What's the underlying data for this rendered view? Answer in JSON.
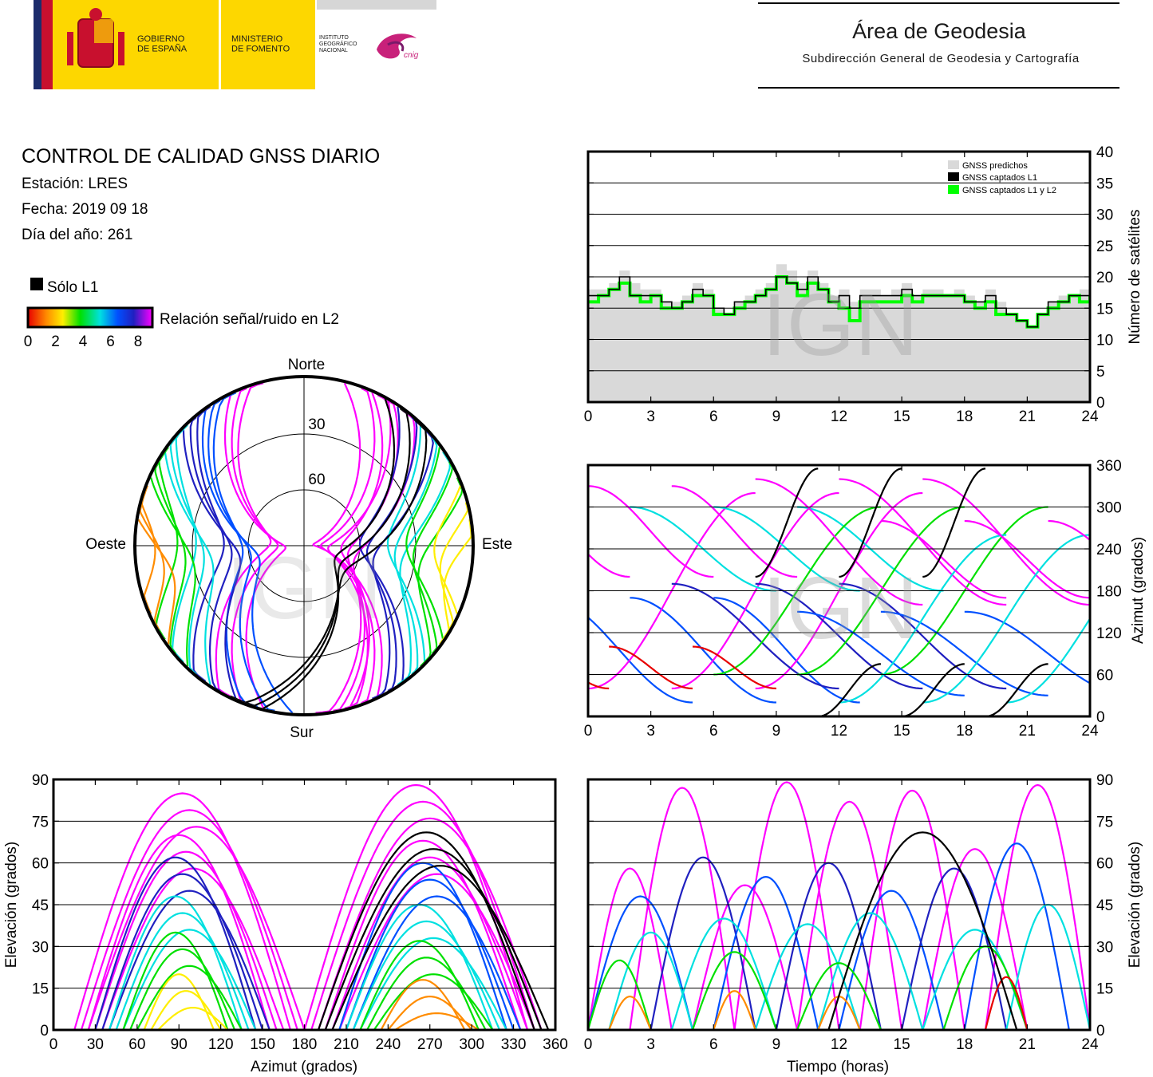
{
  "header": {
    "gobierno": "GOBIERNO\nDE ESPAÑA",
    "ministerio": "MINISTERIO\nDE FOMENTO",
    "instituto": "INSTITUTO\nGEOGRÁFICO\nNACIONAL",
    "cnig": "cnig",
    "area_title": "Área de Geodesia",
    "area_subtitle": "Subdirección General de Geodesia y Cartografía",
    "colors": {
      "yellow": "#fdd700",
      "red": "#c8102e",
      "blue": "#1c2c6c",
      "gray": "#d6d6d6",
      "cnig_magenta": "#c8217a"
    }
  },
  "info": {
    "title": "CONTROL DE CALIDAD GNSS DIARIO",
    "station": "Estación: LRES",
    "date": "Fecha: 2019 09 18",
    "doy": "Día del año: 261",
    "legend_l1": "Sólo L1",
    "colorbar_label": "Relación señal/ruido en L2",
    "colorbar_ticks": [
      "0",
      "2",
      "4",
      "6",
      "8"
    ],
    "colorbar_colors": [
      "#e80000",
      "#ff8c00",
      "#ffee00",
      "#00e000",
      "#00e0e0",
      "#0050ff",
      "#2020c0",
      "#ff00ff"
    ]
  },
  "watermark": "IGN",
  "chart_data": [
    {
      "type": "area",
      "id": "satellites",
      "ylabel": "Número de satélites",
      "xlim": [
        0,
        24
      ],
      "ylim": [
        0,
        40
      ],
      "xticks": [
        "0",
        "3",
        "6",
        "9",
        "12",
        "15",
        "18",
        "21",
        "24"
      ],
      "yticks": [
        "0",
        "5",
        "10",
        "15",
        "20",
        "25",
        "30",
        "35",
        "40"
      ],
      "legend": [
        "GNSS predichos",
        "GNSS captados L1",
        "GNSS captados L1 y L2"
      ],
      "legend_position": "top-right",
      "grid": true,
      "colors": {
        "predicted": "#d9d9d9",
        "l1": "#000000",
        "l1l2": "#00ff00"
      },
      "x": [
        0,
        0.5,
        1,
        1.5,
        2,
        2.5,
        3,
        3.5,
        4,
        4.5,
        5,
        5.5,
        6,
        6.5,
        7,
        7.5,
        8,
        8.5,
        9,
        9.5,
        10,
        10.5,
        11,
        11.5,
        12,
        12.5,
        13,
        13.5,
        14,
        14.5,
        15,
        15.5,
        16,
        16.5,
        17,
        17.5,
        18,
        18.5,
        19,
        19.5,
        20,
        20.5,
        21,
        21.5,
        22,
        22.5,
        23,
        23.5,
        24
      ],
      "predicted": [
        18,
        18,
        19,
        21,
        19,
        18,
        18,
        16,
        16,
        17,
        19,
        18,
        15,
        14,
        16,
        17,
        18,
        19,
        22,
        21,
        19,
        21,
        19,
        17,
        18,
        16,
        18,
        18,
        17,
        18,
        19,
        17,
        18,
        18,
        17,
        18,
        17,
        16,
        18,
        16,
        14,
        13,
        12,
        14,
        16,
        17,
        17,
        18,
        18
      ],
      "l1": [
        17,
        17,
        18,
        20,
        17,
        17,
        17,
        16,
        15,
        16,
        18,
        17,
        15,
        14,
        16,
        16,
        17,
        18,
        20,
        19,
        18,
        20,
        18,
        16,
        17,
        15,
        17,
        17,
        17,
        17,
        18,
        17,
        17,
        17,
        17,
        17,
        16,
        16,
        17,
        15,
        14,
        13,
        12,
        14,
        16,
        16,
        17,
        17,
        17
      ],
      "l1l2": [
        16,
        17,
        18,
        19,
        17,
        16,
        17,
        15,
        15,
        16,
        17,
        17,
        14,
        14,
        15,
        16,
        17,
        18,
        20,
        19,
        17,
        19,
        18,
        16,
        15,
        13,
        16,
        16,
        16,
        16,
        17,
        16,
        17,
        17,
        17,
        17,
        16,
        15,
        16,
        14,
        14,
        13,
        12,
        14,
        15,
        16,
        17,
        16,
        17
      ]
    },
    {
      "type": "scatter",
      "id": "skyplot",
      "labels": {
        "north": "Norte",
        "south": "Sur",
        "east": "Este",
        "west": "Oeste"
      },
      "rings": [
        "30",
        "60"
      ],
      "description_tracks": "satellite tracks colored by L2 SNR",
      "tracks": [
        {
          "az_start": 20,
          "az_end": 160,
          "max_el": 85,
          "color": "#ff00ff"
        },
        {
          "az_start": 340,
          "az_end": 200,
          "max_el": 80,
          "color": "#ff00ff"
        },
        {
          "az_start": 30,
          "az_end": 170,
          "max_el": 70,
          "color": "#ff00ff"
        },
        {
          "az_start": 330,
          "az_end": 190,
          "max_el": 65,
          "color": "#0050ff"
        },
        {
          "az_start": 40,
          "az_end": 150,
          "max_el": 60,
          "color": "#2020c0"
        },
        {
          "az_start": 320,
          "az_end": 210,
          "max_el": 55,
          "color": "#2020c0"
        },
        {
          "az_start": 50,
          "az_end": 140,
          "max_el": 45,
          "color": "#00e0e0"
        },
        {
          "az_start": 310,
          "az_end": 220,
          "max_el": 40,
          "color": "#00e0e0"
        },
        {
          "az_start": 60,
          "az_end": 130,
          "max_el": 35,
          "color": "#00e000"
        },
        {
          "az_start": 300,
          "az_end": 230,
          "max_el": 30,
          "color": "#00e000"
        },
        {
          "az_start": 75,
          "az_end": 120,
          "max_el": 20,
          "color": "#ffee00"
        },
        {
          "az_start": 285,
          "az_end": 240,
          "max_el": 18,
          "color": "#ff8c00"
        },
        {
          "az_start": 200,
          "az_end": 35,
          "max_el": 72,
          "color": "#000000"
        }
      ]
    },
    {
      "type": "scatter",
      "id": "azimuth_time",
      "ylabel": "Azimut (grados)",
      "xlim": [
        0,
        24
      ],
      "ylim": [
        0,
        360
      ],
      "xticks": [
        "0",
        "3",
        "6",
        "9",
        "12",
        "15",
        "18",
        "21",
        "24"
      ],
      "yticks": [
        "0",
        "60",
        "120",
        "180",
        "240",
        "300",
        "360"
      ],
      "grid": true,
      "tracks": [
        {
          "t0": 0,
          "t1": 6,
          "az0": 330,
          "az1": 200,
          "color": "#ff00ff"
        },
        {
          "t0": 2,
          "t1": 9,
          "az0": 170,
          "az1": 20,
          "color": "#0050ff"
        },
        {
          "t0": 4,
          "t1": 12,
          "az0": 40,
          "az1": 320,
          "color": "#ff00ff"
        },
        {
          "t0": 6,
          "t1": 13,
          "az0": 300,
          "az1": 180,
          "color": "#00e0e0"
        },
        {
          "t0": 8,
          "t1": 16,
          "az0": 190,
          "az1": 40,
          "color": "#2020c0"
        },
        {
          "t0": 10,
          "t1": 18,
          "az0": 60,
          "az1": 300,
          "color": "#00e000"
        },
        {
          "t0": 12,
          "t1": 20,
          "az0": 340,
          "az1": 160,
          "color": "#ff00ff"
        },
        {
          "t0": 14,
          "t1": 22,
          "az0": 150,
          "az1": 30,
          "color": "#0050ff"
        },
        {
          "t0": 16,
          "t1": 24,
          "az0": 20,
          "az1": 260,
          "color": "#00e0e0"
        },
        {
          "t0": 18,
          "t1": 24,
          "az0": 280,
          "az1": 170,
          "color": "#ff00ff"
        },
        {
          "t0": 1,
          "t1": 5,
          "az0": 100,
          "az1": 40,
          "color": "#e80000"
        },
        {
          "t0": 12,
          "t1": 15,
          "az0": 200,
          "az1": 355,
          "color": "#000000"
        },
        {
          "t0": 15,
          "t1": 18,
          "az0": 0,
          "az1": 75,
          "color": "#000000"
        }
      ]
    },
    {
      "type": "scatter",
      "id": "elevation_azimuth",
      "xlabel": "Azimut (grados)",
      "ylabel": "Elevación (grados)",
      "xlim": [
        0,
        360
      ],
      "ylim": [
        0,
        90
      ],
      "xticks": [
        "0",
        "30",
        "60",
        "90",
        "120",
        "150",
        "180",
        "210",
        "240",
        "270",
        "300",
        "330",
        "360"
      ],
      "yticks": [
        "0",
        "15",
        "30",
        "45",
        "60",
        "75",
        "90"
      ],
      "grid": true,
      "arcs": [
        {
          "az0": 20,
          "az1": 175,
          "peak": 85,
          "color": "#ff00ff"
        },
        {
          "az0": 185,
          "az1": 345,
          "peak": 88,
          "color": "#ff00ff"
        },
        {
          "az0": 30,
          "az1": 160,
          "peak": 70,
          "color": "#ff00ff"
        },
        {
          "az0": 200,
          "az1": 340,
          "peak": 68,
          "color": "#ff00ff"
        },
        {
          "az0": 35,
          "az1": 150,
          "peak": 62,
          "color": "#2020c0"
        },
        {
          "az0": 210,
          "az1": 330,
          "peak": 60,
          "color": "#0050ff"
        },
        {
          "az0": 45,
          "az1": 140,
          "peak": 48,
          "color": "#00e0e0"
        },
        {
          "az0": 215,
          "az1": 320,
          "peak": 45,
          "color": "#00e0e0"
        },
        {
          "az0": 55,
          "az1": 130,
          "peak": 35,
          "color": "#00e000"
        },
        {
          "az0": 225,
          "az1": 310,
          "peak": 32,
          "color": "#00e000"
        },
        {
          "az0": 70,
          "az1": 120,
          "peak": 20,
          "color": "#ffee00"
        },
        {
          "az0": 240,
          "az1": 300,
          "peak": 18,
          "color": "#ff8c00"
        },
        {
          "az0": 195,
          "az1": 350,
          "peak": 71,
          "color": "#000000"
        }
      ]
    },
    {
      "type": "scatter",
      "id": "elevation_time",
      "xlabel": "Tiempo (horas)",
      "ylabel": "Elevación (grados)",
      "xlim": [
        0,
        24
      ],
      "ylim": [
        0,
        90
      ],
      "xticks": [
        "0",
        "3",
        "6",
        "9",
        "12",
        "15",
        "18",
        "21",
        "24"
      ],
      "yticks": [
        "0",
        "15",
        "30",
        "45",
        "60",
        "75",
        "90"
      ],
      "grid": true,
      "arcs": [
        {
          "t0": 0,
          "t1": 4,
          "peak": 58,
          "color": "#ff00ff"
        },
        {
          "t0": 2,
          "t1": 7,
          "peak": 87,
          "color": "#ff00ff"
        },
        {
          "t0": 5,
          "t1": 10,
          "peak": 52,
          "color": "#ff00ff"
        },
        {
          "t0": 7,
          "t1": 12,
          "peak": 89,
          "color": "#ff00ff"
        },
        {
          "t0": 10,
          "t1": 15,
          "peak": 82,
          "color": "#ff00ff"
        },
        {
          "t0": 13,
          "t1": 18,
          "peak": 86,
          "color": "#ff00ff"
        },
        {
          "t0": 16,
          "t1": 21,
          "peak": 65,
          "color": "#ff00ff"
        },
        {
          "t0": 19,
          "t1": 24,
          "peak": 88,
          "color": "#ff00ff"
        },
        {
          "t0": 0,
          "t1": 5,
          "peak": 48,
          "color": "#0050ff"
        },
        {
          "t0": 3,
          "t1": 8,
          "peak": 62,
          "color": "#2020c0"
        },
        {
          "t0": 6,
          "t1": 11,
          "peak": 55,
          "color": "#0050ff"
        },
        {
          "t0": 9,
          "t1": 14,
          "peak": 60,
          "color": "#2020c0"
        },
        {
          "t0": 12,
          "t1": 17,
          "peak": 50,
          "color": "#0050ff"
        },
        {
          "t0": 15,
          "t1": 20,
          "peak": 58,
          "color": "#2020c0"
        },
        {
          "t0": 18,
          "t1": 23,
          "peak": 67,
          "color": "#0050ff"
        },
        {
          "t0": 1,
          "t1": 5,
          "peak": 35,
          "color": "#00e0e0"
        },
        {
          "t0": 4,
          "t1": 9,
          "peak": 40,
          "color": "#00e0e0"
        },
        {
          "t0": 8,
          "t1": 13,
          "peak": 38,
          "color": "#00e0e0"
        },
        {
          "t0": 11,
          "t1": 16,
          "peak": 42,
          "color": "#00e0e0"
        },
        {
          "t0": 16,
          "t1": 21,
          "peak": 36,
          "color": "#00e0e0"
        },
        {
          "t0": 20,
          "t1": 24,
          "peak": 45,
          "color": "#00e0e0"
        },
        {
          "t0": 0,
          "t1": 3,
          "peak": 25,
          "color": "#00e000"
        },
        {
          "t0": 5,
          "t1": 9,
          "peak": 28,
          "color": "#00e000"
        },
        {
          "t0": 10,
          "t1": 14,
          "peak": 24,
          "color": "#00e000"
        },
        {
          "t0": 17,
          "t1": 21,
          "peak": 30,
          "color": "#00e000"
        },
        {
          "t0": 1,
          "t1": 3,
          "peak": 12,
          "color": "#ff8c00"
        },
        {
          "t0": 6,
          "t1": 8,
          "peak": 14,
          "color": "#ff8c00"
        },
        {
          "t0": 11,
          "t1": 13,
          "peak": 12,
          "color": "#ff8c00"
        },
        {
          "t0": 19,
          "t1": 21,
          "peak": 19,
          "color": "#e80000"
        },
        {
          "t0": 11.5,
          "t1": 20.5,
          "peak": 71,
          "color": "#000000"
        }
      ]
    }
  ]
}
